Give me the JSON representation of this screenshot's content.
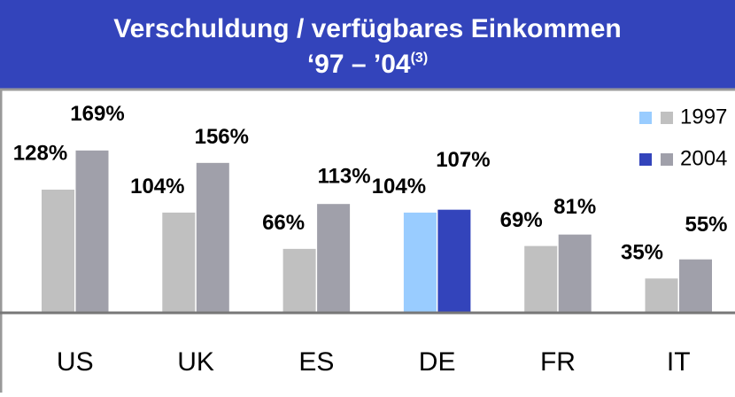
{
  "chart_data": {
    "type": "bar",
    "title": "Verschuldung / verfügbares Einkommen",
    "subtitle": "‘97 – ’04",
    "subtitle_note": "(3)",
    "categories": [
      "US",
      "UK",
      "ES",
      "DE",
      "FR",
      "IT"
    ],
    "highlight_category": "DE",
    "series": [
      {
        "name": "1997",
        "color": "#c0c0c0",
        "highlight_color": "#99ccff",
        "values": [
          128,
          104,
          66,
          104,
          69,
          35
        ],
        "value_labels": [
          "128%",
          "104%",
          "66%",
          "104%",
          "69%",
          "35%"
        ]
      },
      {
        "name": "2004",
        "color": "#a0a0aa",
        "highlight_color": "#3344bb",
        "values": [
          169,
          156,
          113,
          107,
          81,
          55
        ],
        "value_labels": [
          "169%",
          "156%",
          "113%",
          "107%",
          "81%",
          "55%"
        ]
      }
    ]
  }
}
